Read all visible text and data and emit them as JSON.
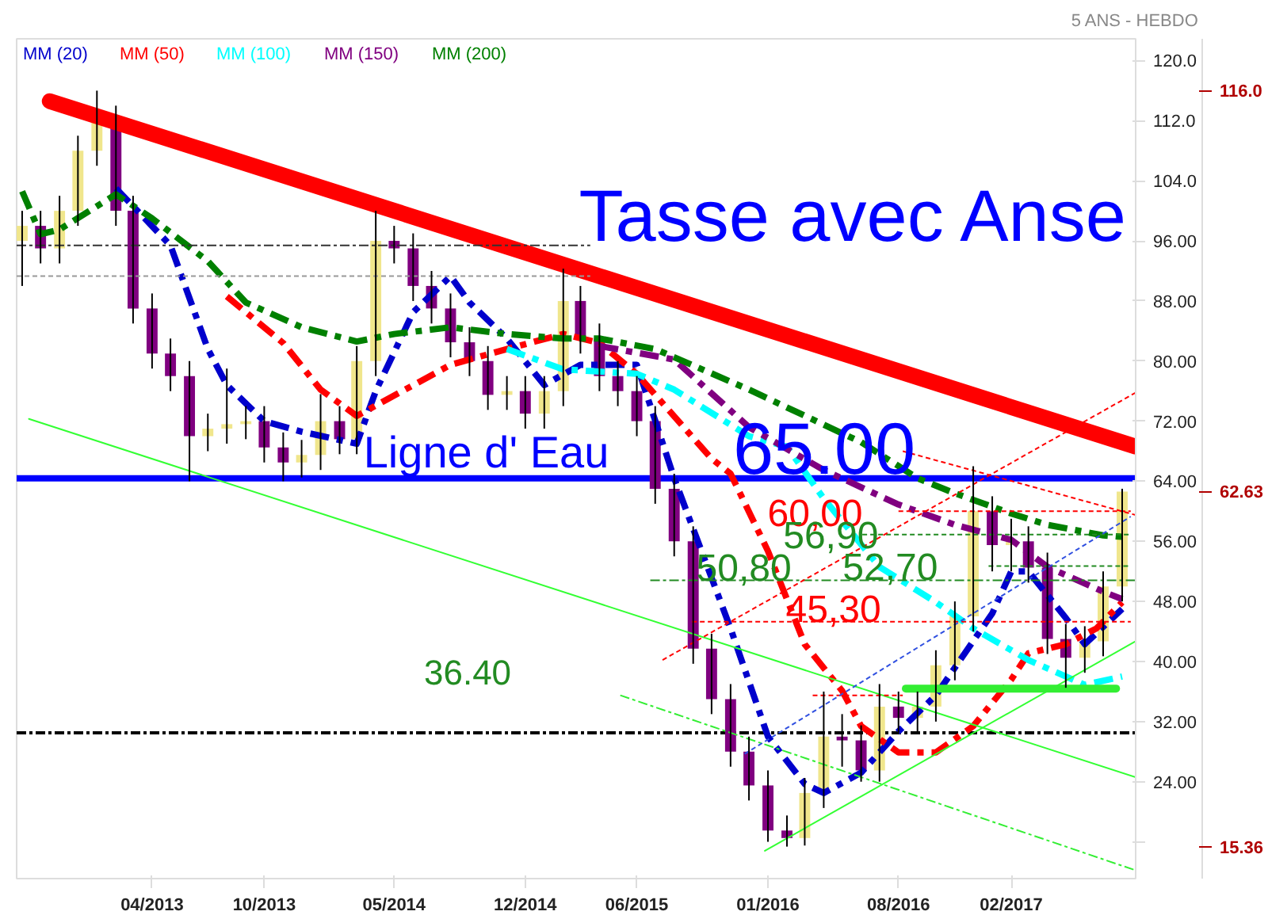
{
  "chart_data": {
    "type": "candlestick",
    "subtitle": "5 ANS - HEBDO",
    "legend": "top left",
    "x": [
      "2012-09",
      "2012-10",
      "2012-11",
      "2012-12",
      "2013-01",
      "2013-02",
      "2013-03",
      "2013-04",
      "2013-05",
      "2013-06",
      "2013-07",
      "2013-08",
      "2013-09",
      "2013-10",
      "2013-11",
      "2013-12",
      "2014-01",
      "2014-02",
      "2014-03",
      "2014-04",
      "2014-05",
      "2014-06",
      "2014-07",
      "2014-08",
      "2014-09",
      "2014-10",
      "2014-11",
      "2014-12",
      "2015-01",
      "2015-02",
      "2015-03",
      "2015-04",
      "2015-05",
      "2015-06",
      "2015-07",
      "2015-08",
      "2015-09",
      "2015-10",
      "2015-11",
      "2015-12",
      "2016-01",
      "2016-02",
      "2016-03",
      "2016-04",
      "2016-05",
      "2016-06",
      "2016-07",
      "2016-08",
      "2016-09",
      "2016-10",
      "2016-11",
      "2016-12",
      "2017-01",
      "2017-02",
      "2017-03",
      "2017-04",
      "2017-05",
      "2017-06",
      "2017-07",
      "2017-08"
    ],
    "ohlc": [
      [
        96,
        100,
        90,
        98
      ],
      [
        98,
        100,
        93,
        95
      ],
      [
        95,
        102,
        93,
        100
      ],
      [
        100,
        110,
        98,
        108
      ],
      [
        108,
        116,
        106,
        112
      ],
      [
        112,
        114,
        98,
        100
      ],
      [
        100,
        102,
        85,
        87
      ],
      [
        87,
        89,
        79,
        81
      ],
      [
        81,
        83,
        76,
        78
      ],
      [
        78,
        80,
        64,
        70
      ],
      [
        70,
        73,
        68,
        71
      ],
      [
        71,
        79,
        69,
        71.6
      ],
      [
        71.6,
        74,
        69.6,
        72
      ],
      [
        72,
        74,
        66.5,
        68.5
      ],
      [
        68.5,
        70.5,
        64,
        66.5
      ],
      [
        66.5,
        69.5,
        64.5,
        67.5
      ],
      [
        67.5,
        75.6,
        65.5,
        72
      ],
      [
        72,
        74,
        67.6,
        69.6
      ],
      [
        69.6,
        82,
        67.6,
        80
      ],
      [
        80,
        100,
        78,
        96
      ],
      [
        96,
        98,
        93,
        95
      ],
      [
        95,
        97,
        88,
        90
      ],
      [
        90,
        92,
        85,
        87
      ],
      [
        87,
        89,
        80.5,
        82.5
      ],
      [
        82.5,
        84.5,
        78,
        80
      ],
      [
        80,
        82,
        73.5,
        75.5
      ],
      [
        75.5,
        78,
        73.5,
        76
      ],
      [
        76,
        78,
        71,
        73
      ],
      [
        73,
        78,
        71,
        76
      ],
      [
        76,
        92.3,
        74,
        88
      ],
      [
        88,
        90,
        81,
        83
      ],
      [
        83,
        85,
        76,
        78
      ],
      [
        78,
        80,
        74,
        76
      ],
      [
        76,
        78,
        70,
        72
      ],
      [
        72,
        74,
        61,
        63
      ],
      [
        63,
        65,
        54,
        56
      ],
      [
        56,
        58,
        39.7,
        41.7
      ],
      [
        41.7,
        43.7,
        33,
        35
      ],
      [
        35,
        37,
        26,
        28
      ],
      [
        28,
        30,
        21.5,
        23.5
      ],
      [
        23.5,
        25.5,
        16,
        17.5
      ],
      [
        17.5,
        19.5,
        15.36,
        16.5
      ],
      [
        16.5,
        24.5,
        15.5,
        22.5
      ],
      [
        22.5,
        36,
        20.5,
        30
      ],
      [
        30,
        33,
        26,
        29.5
      ],
      [
        29.5,
        31.5,
        24,
        25.5
      ],
      [
        25.5,
        37,
        24,
        34
      ],
      [
        34,
        36,
        30.5,
        32.5
      ],
      [
        32.5,
        36,
        30.5,
        34
      ],
      [
        34,
        41.5,
        32,
        39.5
      ],
      [
        39.5,
        48,
        37.5,
        46
      ],
      [
        46,
        66,
        44,
        60
      ],
      [
        60,
        62,
        52,
        55.5
      ],
      [
        55.5,
        59,
        52,
        56
      ],
      [
        56,
        58,
        50.5,
        52.5
      ],
      [
        52.5,
        54.5,
        41,
        43
      ],
      [
        43,
        45,
        36.5,
        40.5
      ],
      [
        40.5,
        44.7,
        38.5,
        42.7
      ],
      [
        42.7,
        52,
        40.7,
        50
      ],
      [
        50,
        63,
        48,
        62.63
      ]
    ],
    "series": [
      {
        "name": "MM (20)",
        "type": "line",
        "color": "#0000cc",
        "line_style": "dashdot",
        "x": [
          "2013-02",
          "2013-05",
          "2013-07",
          "2013-08",
          "2013-10",
          "2013-12",
          "2014-03",
          "2014-04",
          "2014-06",
          "2014-08",
          "2014-09",
          "2014-11",
          "2015-01",
          "2015-03",
          "2015-06",
          "2015-08",
          "2015-11",
          "2016-01",
          "2016-03",
          "2016-04",
          "2016-06",
          "2016-08",
          "2016-10",
          "2017-01",
          "2017-02",
          "2017-03",
          "2017-05",
          "2017-06",
          "2017-08"
        ],
        "values": [
          103,
          95.4,
          81.6,
          76.8,
          72,
          70.6,
          69,
          76,
          86.5,
          91.3,
          87.8,
          83,
          76.8,
          79.5,
          79.5,
          64.4,
          44.4,
          30,
          23.7,
          22.5,
          25.2,
          30.7,
          35.5,
          46.4,
          52,
          52,
          45.8,
          42.3,
          47
        ]
      },
      {
        "name": "MM (50)",
        "type": "line",
        "color": "#ff0000",
        "line_style": "dashdot",
        "x": [
          "2013-08",
          "2013-11",
          "2014-01",
          "2014-03",
          "2014-05",
          "2014-08",
          "2014-11",
          "2015-02",
          "2015-04",
          "2015-06",
          "2015-10",
          "2015-11",
          "2016-01",
          "2016-03",
          "2016-05",
          "2016-06",
          "2016-08",
          "2016-10",
          "2016-12",
          "2017-02",
          "2017-03",
          "2017-05",
          "2017-06-20",
          "2017-08"
        ],
        "values": [
          88.6,
          82.4,
          76.2,
          72.7,
          75.4,
          79.5,
          81.6,
          83.6,
          82.4,
          78.3,
          67,
          65,
          54.7,
          42.3,
          36.1,
          31.4,
          27.9,
          27.9,
          31.4,
          37.6,
          41.1,
          42.3,
          44.4,
          47.9
        ]
      },
      {
        "name": "MM (100)",
        "type": "line",
        "color": "#00ffff",
        "line_style": "dashdot",
        "x": [
          "2014-11",
          "2015-02",
          "2015-06",
          "2015-08",
          "2015-12",
          "2016-02",
          "2016-04",
          "2016-07",
          "2016-10",
          "2016-12",
          "2017-03",
          "2017-06",
          "2017-08"
        ],
        "values": [
          81.6,
          78.9,
          78.3,
          76.2,
          70,
          68.6,
          61.7,
          52.6,
          47.9,
          44.4,
          40.2,
          36.9,
          38
        ]
      },
      {
        "name": "MM (150)",
        "type": "line",
        "color": "#800080",
        "line_style": "dashdot",
        "x": [
          "2015-04",
          "2015-08",
          "2015-12",
          "2016-04",
          "2016-08",
          "2016-11",
          "2017-02",
          "2017-04",
          "2017-07",
          "2017-08"
        ],
        "values": [
          82,
          80.2,
          71.2,
          65.5,
          60.9,
          58.2,
          56.2,
          52.6,
          49.3,
          48.3
        ]
      },
      {
        "name": "MM (200)",
        "type": "line",
        "color": "#008000",
        "line_style": "dashdot",
        "x": [
          "2012-09",
          "2012-10",
          "2012-11",
          "2013-02",
          "2013-04",
          "2013-07",
          "2013-09",
          "2013-12",
          "2014-03",
          "2014-05",
          "2014-08",
          "2014-11",
          "2015-02",
          "2015-04",
          "2015-07",
          "2015-12",
          "2016-06",
          "2016-09",
          "2016-11",
          "2017-02",
          "2017-04",
          "2017-07",
          "2017-08"
        ],
        "values": [
          102.6,
          96.9,
          97.5,
          102.2,
          99,
          93.3,
          87.8,
          84.5,
          82.6,
          83.6,
          84.5,
          83.6,
          83,
          83,
          81.6,
          76.2,
          69.2,
          64.4,
          62.4,
          59.7,
          58.2,
          56.8,
          56.6
        ]
      },
      {
        "type": "line",
        "color": "#ff0000",
        "x": [
          "2012-10-16",
          "2017-08-23"
        ],
        "values": [
          114.6,
          68.6
        ]
      },
      {
        "type": "line",
        "color": "#333333",
        "line_style": "dashdot",
        "x": [
          "2012-08-23",
          "2015-03-17"
        ],
        "values": [
          95.4,
          95.4
        ]
      },
      {
        "type": "line",
        "color": "#999999",
        "line_style": "dashed",
        "x": [
          "2012-08-23",
          "2015-03-17"
        ],
        "values": [
          91.3,
          91.3
        ]
      },
      {
        "type": "line",
        "color": "#33ff33",
        "x": [
          "2012-09-12",
          "2017-08-23"
        ],
        "values": [
          72.3,
          24.6
        ]
      },
      {
        "type": "line",
        "color": "#33ff33",
        "x": [
          "2015-12-27",
          "2017-08-23"
        ],
        "values": [
          14.8,
          42.7
        ]
      },
      {
        "type": "line",
        "color": "#33ee33",
        "line_style": "dashdot",
        "x": [
          "2015-05-05",
          "2017-08-23"
        ],
        "values": [
          35.5,
          12.2
        ]
      },
      {
        "type": "line",
        "color": "#33ee33",
        "x": [
          "2016-08-13",
          "2017-07-22"
        ],
        "values": [
          36.4,
          36.4
        ]
      },
      {
        "type": "line",
        "color": "#ff0000",
        "line_style": "dashed",
        "x": [
          "2016-08-01",
          "2017-08-15"
        ],
        "values": [
          60,
          60
        ]
      },
      {
        "type": "line",
        "color": "#228b22",
        "line_style": "dashed",
        "x": [
          "2016-06-03",
          "2017-08-15"
        ],
        "values": [
          56.9,
          56.9
        ]
      },
      {
        "type": "line",
        "color": "#228b22",
        "line_style": "dashed",
        "x": [
          "2016-12-26",
          "2017-08-15"
        ],
        "values": [
          52.7,
          52.7
        ]
      },
      {
        "type": "line",
        "color": "#228b22",
        "line_style": "dashdot",
        "x": [
          "2015-06-23",
          "2017-08-23"
        ],
        "values": [
          50.8,
          50.8
        ]
      },
      {
        "type": "line",
        "color": "#ff0000",
        "line_style": "dashed",
        "x": [
          "2015-08-30",
          "2017-08-15"
        ],
        "values": [
          45.3,
          45.3
        ]
      },
      {
        "type": "line",
        "color": "#ff0000",
        "line_style": "dashed",
        "x": [
          "2016-03-14",
          "2016-08-08"
        ],
        "values": [
          35.5,
          35.5
        ]
      },
      {
        "type": "line",
        "color": "#ff0000",
        "line_style": "dashed",
        "x": [
          "2015-07-13",
          "2017-08-23"
        ],
        "values": [
          40.2,
          75.8
        ]
      },
      {
        "type": "line",
        "color": "#ff0000",
        "line_style": "dashed",
        "x": [
          "2016-08-08",
          "2017-08-23"
        ],
        "values": [
          68,
          59.5
        ]
      },
      {
        "type": "line",
        "color": "#3050e0",
        "line_style": "dashed",
        "x": [
          "2015-11-24",
          "2017-08-15"
        ],
        "values": [
          27.7,
          59.3
        ]
      }
    ],
    "ref_lines": [
      {
        "axis": "y",
        "value": 64.4,
        "label": "Ligne d' Eau",
        "color": "#0000ff",
        "line_style": "solid"
      },
      {
        "axis": "y",
        "value": 30.5,
        "color": "#000000",
        "line_style": "dashdot"
      }
    ],
    "annotations": [
      "Tasse avec Anse",
      {
        "text": "65.00",
        "x": "2015-11-05",
        "y": 65
      },
      "60,00",
      "56,90",
      {
        "text": "50,80",
        "x": "2015-09-06",
        "y": 50.8
      },
      {
        "text": "52,70",
        "x": "2016-05-02",
        "y": 52.7
      },
      {
        "text": "45,30",
        "x": "2016-01-30",
        "y": 45.3
      },
      "36.40",
      "116.0",
      "62.63",
      "15.36"
    ],
    "xlim": [
      "2012-08-23",
      "2017-08-23"
    ],
    "xticks": [
      {
        "value": "2013-04-01",
        "label": "04/2013"
      },
      {
        "value": "2013-10-01",
        "label": "10/2013"
      },
      {
        "value": "2014-05-01",
        "label": "05/2014"
      },
      {
        "value": "2014-12-01",
        "label": "12/2014"
      },
      {
        "value": "2015-06-01",
        "label": "06/2015"
      },
      {
        "value": "2016-01-01",
        "label": "01/2016"
      },
      {
        "value": "2016-08-01",
        "label": "08/2016"
      },
      {
        "value": "2017-02-01",
        "label": "02/2017"
      }
    ],
    "ylim": [
      11.1,
      122.9
    ],
    "yticks": [
      {
        "value": 16,
        "label": null
      },
      {
        "value": 24,
        "label": "24.00"
      },
      {
        "value": 32,
        "label": "32.00"
      },
      {
        "value": 40,
        "label": "40.00"
      },
      {
        "value": 48,
        "label": "48.00"
      },
      {
        "value": 56,
        "label": "56.00"
      },
      {
        "value": 64,
        "label": "64.00"
      },
      {
        "value": 72,
        "label": "72.00"
      },
      {
        "value": 80,
        "label": "80.00"
      },
      {
        "value": 88,
        "label": "88.00"
      },
      {
        "value": 96,
        "label": "96.00"
      },
      {
        "value": 104,
        "label": "104.0"
      },
      {
        "value": 112,
        "label": "112.0"
      },
      {
        "value": 120,
        "label": "120.0"
      }
    ]
  }
}
